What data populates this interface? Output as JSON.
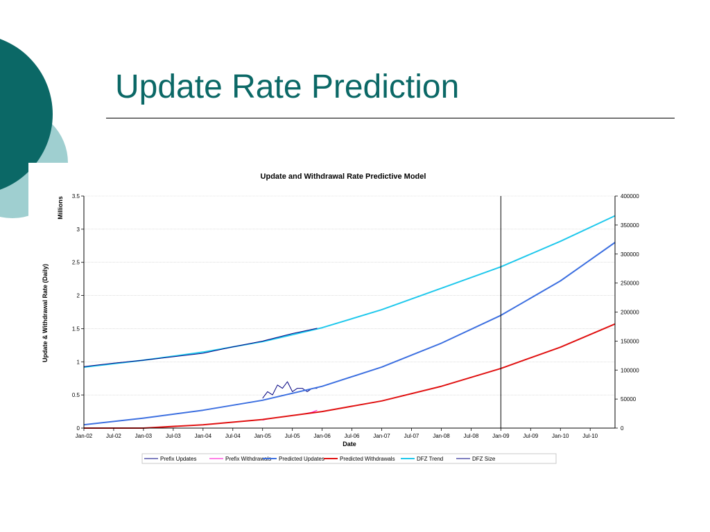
{
  "slide": {
    "title": "Update Rate Prediction",
    "title_color": "#0b6866",
    "theme_colors": {
      "dark": "#0b6866",
      "light": "#9fcfd0"
    }
  },
  "chart_data": {
    "type": "line",
    "title": "Update and Withdrawal Rate Predictive Model",
    "xlabel": "Date",
    "ylabel": "Update & Withdrawal Rate (Daily)",
    "ylabel_units": "Millions",
    "y_left": {
      "range": [
        0,
        3.5
      ],
      "ticks": [
        "0",
        "0.5",
        "1",
        "1.5",
        "2",
        "2.5",
        "3",
        "3.5"
      ]
    },
    "y_right": {
      "range": [
        0,
        400000
      ],
      "ticks": [
        "0",
        "50000",
        "100000",
        "150000",
        "200000",
        "250000",
        "300000",
        "350000",
        "400000"
      ]
    },
    "x_range": [
      "2002-01",
      "2010-12"
    ],
    "x_ticks": [
      "Jan-02",
      "Jul-02",
      "Jan-03",
      "Jul-03",
      "Jan-04",
      "Jul-04",
      "Jan-05",
      "Jul-05",
      "Jan-06",
      "Jul-06",
      "Jan-07",
      "Jul-07",
      "Jan-08",
      "Jul-08",
      "Jan-09",
      "Jul-09",
      "Jan-10",
      "Jul-10"
    ],
    "grid": true,
    "legend_position": "bottom",
    "vertical_marker": "Jan-09",
    "series": [
      {
        "name": "Prefix Updates",
        "axis": "left",
        "color": "#000080",
        "x": [
          "2005-01",
          "2005-02",
          "2005-03",
          "2005-04",
          "2005-05",
          "2005-06",
          "2005-07",
          "2005-08",
          "2005-09",
          "2005-10",
          "2005-11",
          "2005-12"
        ],
        "y": [
          0.45,
          0.55,
          0.5,
          0.65,
          0.6,
          0.7,
          0.55,
          0.6,
          0.6,
          0.55,
          0.6,
          0.6
        ]
      },
      {
        "name": "Prefix Withdrawals",
        "axis": "left",
        "color": "#ff00cc",
        "x": [
          "2005-01",
          "2005-03",
          "2005-05",
          "2005-07",
          "2005-09",
          "2005-11",
          "2005-12"
        ],
        "y": [
          0.12,
          0.15,
          0.17,
          0.19,
          0.21,
          0.24,
          0.27
        ]
      },
      {
        "name": "Predicted Updates",
        "axis": "left",
        "color": "#3c6fe0",
        "x": [
          "2002-01",
          "2003-01",
          "2004-01",
          "2005-01",
          "2006-01",
          "2007-01",
          "2008-01",
          "2009-01",
          "2010-01",
          "2010-12"
        ],
        "y": [
          0.05,
          0.15,
          0.27,
          0.42,
          0.63,
          0.92,
          1.28,
          1.7,
          2.22,
          2.8
        ]
      },
      {
        "name": "Predicted Withdrawals",
        "axis": "left",
        "color": "#e01010",
        "x": [
          "2002-01",
          "2003-01",
          "2004-01",
          "2005-01",
          "2006-01",
          "2007-01",
          "2008-01",
          "2009-01",
          "2010-01",
          "2010-12"
        ],
        "y": [
          0.0,
          0.0,
          0.05,
          0.13,
          0.25,
          0.41,
          0.63,
          0.9,
          1.22,
          1.57
        ]
      },
      {
        "name": "DFZ Trend",
        "axis": "right",
        "color": "#1fc8ec",
        "x": [
          "2002-01",
          "2003-01",
          "2004-01",
          "2005-01",
          "2006-01",
          "2007-01",
          "2008-01",
          "2009-01",
          "2010-01",
          "2010-12"
        ],
        "y": [
          105000,
          117000,
          131000,
          149000,
          173000,
          204000,
          241000,
          278000,
          322000,
          366000
        ]
      },
      {
        "name": "DFZ Size",
        "axis": "right",
        "color": "#000080",
        "x": [
          "2002-01",
          "2002-07",
          "2003-01",
          "2003-07",
          "2004-01",
          "2004-07",
          "2005-01",
          "2005-07",
          "2005-12"
        ],
        "y": [
          106000,
          112000,
          117000,
          123000,
          129000,
          140000,
          150000,
          163000,
          172000
        ]
      }
    ]
  }
}
